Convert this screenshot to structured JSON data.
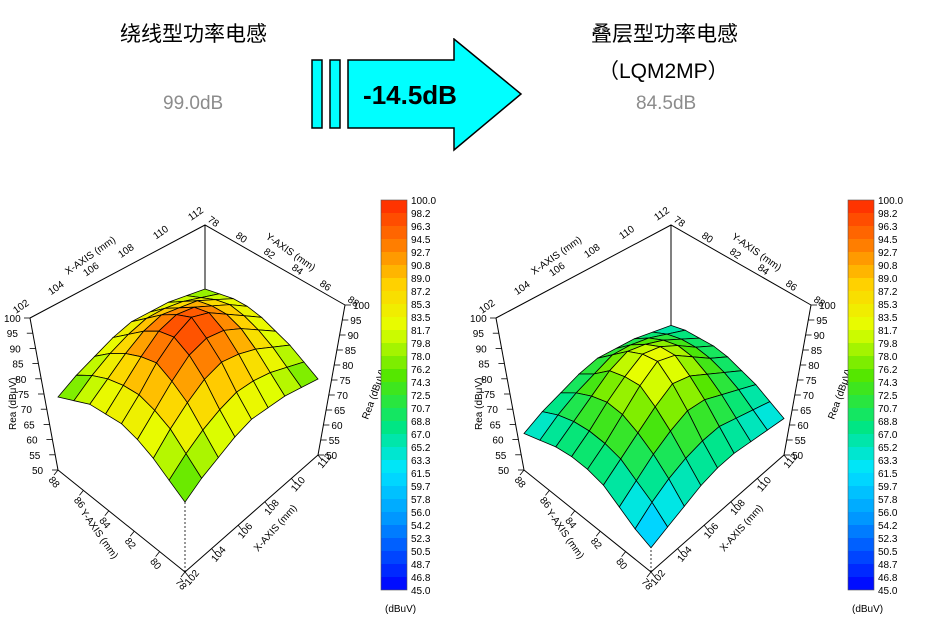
{
  "header": {
    "left_title": "绕线型功率电感",
    "left_value": "99.0dB",
    "right_title": "叠层型功率电感",
    "right_subtitle": "（LQM2MP）",
    "right_value": "84.5dB",
    "arrow_label": "-14.5dB"
  },
  "colors": {
    "arrow_fill": "#00ffff",
    "arrow_stroke": "#000000",
    "value_text": "#8c8c8c"
  },
  "chart_data": [
    {
      "type": "surface3d",
      "z_axis_label": "Rea (dBμV)",
      "x_axis_label": "X-AXIS (mm)",
      "y_axis_label": "Y-AXIS (mm)",
      "x_ticks": [
        "102",
        "104",
        "106",
        "108",
        "110",
        "112"
      ],
      "y_ticks": [
        "78",
        "80",
        "82",
        "84",
        "86",
        "88"
      ],
      "z_ticks": [
        "50",
        "55",
        "60",
        "65",
        "70",
        "75",
        "80",
        "85",
        "90",
        "95",
        "100"
      ],
      "zlim": [
        50,
        100
      ],
      "peak_value": 99.0,
      "grid_values": [
        [
          76,
          78,
          80,
          81,
          81,
          80,
          79,
          77,
          75
        ],
        [
          78,
          81,
          84,
          86,
          86,
          85,
          83,
          80,
          77
        ],
        [
          80,
          84,
          88,
          90,
          91,
          90,
          87,
          83,
          79
        ],
        [
          81,
          86,
          90,
          94,
          96,
          94,
          90,
          85,
          80
        ],
        [
          82,
          87,
          92,
          96,
          99,
          96,
          92,
          86,
          81
        ],
        [
          81,
          86,
          91,
          95,
          97,
          95,
          91,
          85,
          80
        ],
        [
          79,
          84,
          88,
          91,
          93,
          91,
          88,
          83,
          78
        ],
        [
          77,
          81,
          84,
          86,
          87,
          86,
          84,
          80,
          76
        ],
        [
          74,
          77,
          80,
          81,
          82,
          81,
          79,
          76,
          73
        ]
      ],
      "colorbar": {
        "unit": "(dBuV)",
        "levels": [
          "100.0",
          "98.2",
          "96.3",
          "94.5",
          "92.7",
          "90.8",
          "89.0",
          "87.2",
          "85.3",
          "83.5",
          "81.7",
          "79.8",
          "78.0",
          "76.2",
          "74.3",
          "72.5",
          "70.7",
          "68.8",
          "67.0",
          "65.2",
          "63.3",
          "61.5",
          "59.7",
          "57.8",
          "56.0",
          "54.2",
          "52.3",
          "50.5",
          "48.7",
          "46.8",
          "45.0"
        ]
      }
    },
    {
      "type": "surface3d",
      "z_axis_label": "Rea (dBμV)",
      "x_axis_label": "X-AXIS (mm)",
      "y_axis_label": "Y-AXIS (mm)",
      "x_ticks": [
        "102",
        "104",
        "106",
        "108",
        "110",
        "112"
      ],
      "y_ticks": [
        "78",
        "80",
        "82",
        "84",
        "86",
        "88"
      ],
      "z_ticks": [
        "50",
        "55",
        "60",
        "65",
        "70",
        "75",
        "80",
        "85",
        "90",
        "95",
        "100"
      ],
      "zlim": [
        50,
        100
      ],
      "peak_value": 84.5,
      "grid_values": [
        [
          64,
          66,
          67,
          68,
          68,
          67,
          66,
          64,
          62
        ],
        [
          66,
          69,
          71,
          72,
          72,
          71,
          69,
          66,
          63
        ],
        [
          68,
          72,
          75,
          77,
          77,
          75,
          72,
          68,
          64
        ],
        [
          69,
          74,
          78,
          81,
          82,
          79,
          75,
          70,
          65
        ],
        [
          70,
          75,
          80,
          83,
          84.5,
          81,
          76,
          70,
          65
        ],
        [
          69,
          73,
          78,
          80,
          81,
          78,
          74,
          69,
          64
        ],
        [
          67,
          71,
          74,
          76,
          76,
          74,
          71,
          67,
          62
        ],
        [
          65,
          68,
          70,
          71,
          71,
          70,
          67,
          64,
          60
        ],
        [
          62,
          64,
          66,
          67,
          67,
          66,
          63,
          60,
          58
        ]
      ],
      "colorbar": {
        "unit": "(dBuV)",
        "levels": [
          "100.0",
          "98.2",
          "96.3",
          "94.5",
          "92.7",
          "90.8",
          "89.0",
          "87.2",
          "85.3",
          "83.5",
          "81.7",
          "79.8",
          "78.0",
          "76.2",
          "74.3",
          "72.5",
          "70.7",
          "68.8",
          "67.0",
          "65.2",
          "63.3",
          "61.5",
          "59.7",
          "57.8",
          "56.0",
          "54.2",
          "52.3",
          "50.5",
          "48.7",
          "46.8",
          "45.0"
        ]
      }
    }
  ]
}
